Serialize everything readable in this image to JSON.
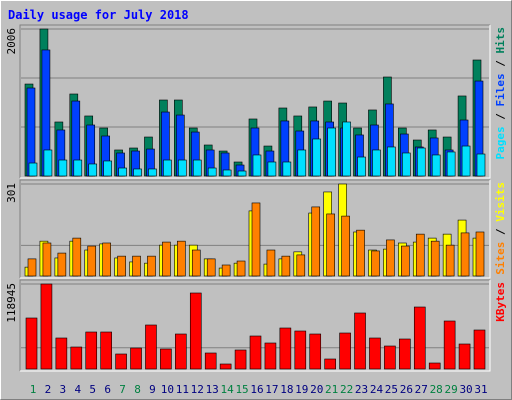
{
  "chart_data": [
    {
      "type": "bar",
      "title": "Daily usage for July 2018",
      "ylim": [
        0,
        2006
      ],
      "yticks": [
        2006
      ],
      "legend_separator": " / ",
      "series": [
        {
          "name": "Hits",
          "color": "#00805c",
          "values": [
            1255,
            2006,
            737,
            1119,
            819,
            655,
            355,
            382,
            532,
            1037,
            1037,
            655,
            423,
            341,
            191,
            778,
            409,
            928,
            819,
            942,
            1023,
            996,
            655,
            901,
            1351,
            655,
            491,
            628,
            532,
            1092,
            1583
          ]
        },
        {
          "name": "Files",
          "color": "#0040ff",
          "values": [
            1201,
            1720,
            628,
            1023,
            696,
            546,
            314,
            341,
            368,
            873,
            832,
            600,
            355,
            314,
            150,
            655,
            341,
            751,
            614,
            751,
            737,
            655,
            560,
            696,
            983,
            573,
            396,
            519,
            355,
            764,
            1296
          ]
        },
        {
          "name": "Pages",
          "color": "#00e0ff",
          "values": [
            177,
            355,
            218,
            218,
            164,
            205,
            109,
            96,
            96,
            218,
            218,
            218,
            109,
            82,
            68,
            287,
            191,
            191,
            355,
            505,
            655,
            737,
            259,
            355,
            396,
            314,
            382,
            287,
            328,
            409,
            300
          ]
        }
      ]
    },
    {
      "type": "bar",
      "ylim": [
        0,
        301
      ],
      "yticks": [
        301
      ],
      "legend_separator": " / ",
      "series": [
        {
          "name": "Visits",
          "color": "#ffff00",
          "values": [
            29,
            114,
            59,
            114,
            85,
            105,
            59,
            46,
            42,
            101,
            101,
            101,
            56,
            26,
            42,
            213,
            39,
            56,
            79,
            206,
            275,
            301,
            144,
            85,
            88,
            108,
            111,
            124,
            137,
            183,
            124
          ]
        },
        {
          "name": "Sites",
          "color": "#ff8000",
          "values": [
            56,
            108,
            75,
            124,
            98,
            108,
            65,
            65,
            65,
            111,
            114,
            85,
            56,
            36,
            49,
            239,
            85,
            65,
            69,
            226,
            203,
            196,
            150,
            82,
            118,
            98,
            137,
            114,
            101,
            141,
            144
          ]
        }
      ]
    },
    {
      "type": "bar",
      "ylim": [
        0,
        118945
      ],
      "yticks": [
        118945
      ],
      "categories": [
        "1",
        "2",
        "3",
        "4",
        "5",
        "6",
        "7",
        "8",
        "9",
        "10",
        "11",
        "12",
        "13",
        "14",
        "15",
        "16",
        "17",
        "18",
        "19",
        "20",
        "21",
        "22",
        "23",
        "24",
        "25",
        "26",
        "27",
        "28",
        "29",
        "30",
        "31"
      ],
      "category_colors": [
        "#008040",
        "#000080",
        "#000080",
        "#000080",
        "#000080",
        "#000080",
        "#008040",
        "#008040",
        "#000080",
        "#000080",
        "#000080",
        "#000080",
        "#000080",
        "#008040",
        "#008040",
        "#000080",
        "#000080",
        "#000080",
        "#000080",
        "#000080",
        "#008040",
        "#008040",
        "#000080",
        "#000080",
        "#000080",
        "#000080",
        "#000080",
        "#008040",
        "#008040",
        "#000080",
        "#000080"
      ],
      "series": [
        {
          "name": "KBytes",
          "color": "#ff0000",
          "values": [
            71366,
            118945,
            43380,
            30780,
            51770,
            51770,
            20990,
            29390,
            61570,
            27990,
            48970,
            106350,
            22390,
            7000,
            26590,
            46170,
            36380,
            57370,
            53170,
            48970,
            13990,
            50370,
            78360,
            43380,
            32180,
            41980,
            86750,
            8390,
            67160,
            34980,
            54570
          ]
        }
      ]
    }
  ]
}
